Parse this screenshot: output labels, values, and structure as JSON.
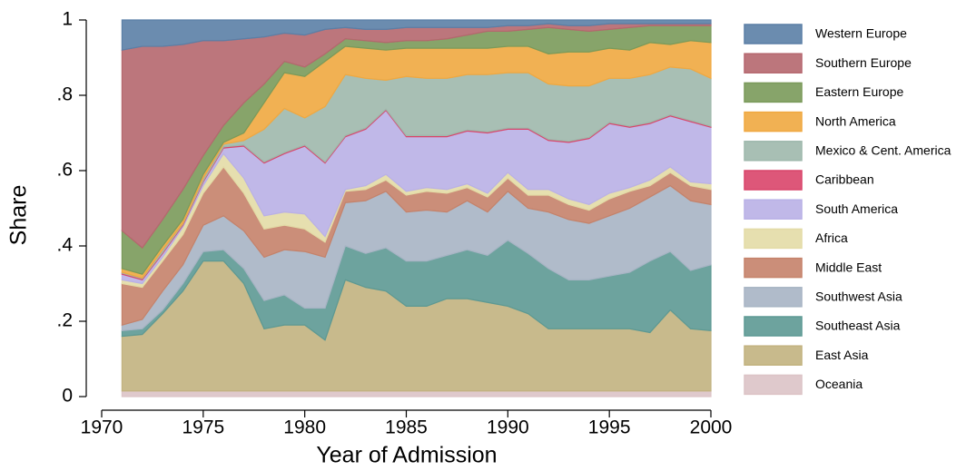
{
  "chart_data": {
    "type": "stacked_area",
    "xlabel": "Year of Admission",
    "ylabel": "Share",
    "x": [
      1971,
      1972,
      1973,
      1974,
      1975,
      1976,
      1977,
      1978,
      1979,
      1980,
      1981,
      1982,
      1983,
      1984,
      1985,
      1986,
      1987,
      1988,
      1989,
      1990,
      1991,
      1992,
      1993,
      1994,
      1995,
      1996,
      1997,
      1998,
      1999,
      2000
    ],
    "xlim": [
      1970,
      2000
    ],
    "xticks": [
      1970,
      1975,
      1980,
      1985,
      1990,
      1995,
      2000
    ],
    "ylim": [
      0,
      1
    ],
    "yticks": [
      0,
      {
        "value": 0.2,
        "label": ".2"
      },
      {
        "value": 0.4,
        "label": ".4"
      },
      {
        "value": 0.6,
        "label": ".6"
      },
      {
        "value": 0.8,
        "label": ".8"
      },
      1
    ],
    "series": [
      {
        "name": "Oceania",
        "color": "#dcc3c6",
        "values": [
          0.015,
          0.015,
          0.015,
          0.015,
          0.015,
          0.015,
          0.015,
          0.015,
          0.015,
          0.015,
          0.015,
          0.015,
          0.015,
          0.015,
          0.015,
          0.015,
          0.015,
          0.015,
          0.015,
          0.015,
          0.015,
          0.015,
          0.015,
          0.015,
          0.015,
          0.015,
          0.015,
          0.015,
          0.015,
          0.015
        ]
      },
      {
        "name": "East Asia",
        "color": "#c2b27f",
        "values": [
          0.145,
          0.15,
          0.205,
          0.265,
          0.345,
          0.345,
          0.285,
          0.165,
          0.175,
          0.175,
          0.135,
          0.295,
          0.275,
          0.265,
          0.225,
          0.225,
          0.245,
          0.245,
          0.235,
          0.225,
          0.205,
          0.165,
          0.165,
          0.165,
          0.165,
          0.165,
          0.155,
          0.215,
          0.165,
          0.16
        ]
      },
      {
        "name": "Southeast Asia",
        "color": "#5d9993",
        "values": [
          0.015,
          0.015,
          0.01,
          0.02,
          0.025,
          0.03,
          0.04,
          0.075,
          0.08,
          0.045,
          0.085,
          0.09,
          0.09,
          0.115,
          0.12,
          0.12,
          0.115,
          0.13,
          0.125,
          0.175,
          0.16,
          0.16,
          0.13,
          0.13,
          0.14,
          0.15,
          0.19,
          0.155,
          0.155,
          0.175
        ]
      },
      {
        "name": "Southwest Asia",
        "color": "#a7b4c4",
        "values": [
          0.015,
          0.025,
          0.05,
          0.05,
          0.07,
          0.09,
          0.1,
          0.115,
          0.12,
          0.15,
          0.135,
          0.115,
          0.14,
          0.15,
          0.13,
          0.135,
          0.115,
          0.13,
          0.115,
          0.13,
          0.12,
          0.15,
          0.16,
          0.15,
          0.16,
          0.17,
          0.17,
          0.175,
          0.185,
          0.16
        ]
      },
      {
        "name": "Middle East",
        "color": "#c5826a",
        "values": [
          0.11,
          0.085,
          0.08,
          0.08,
          0.085,
          0.13,
          0.1,
          0.075,
          0.065,
          0.06,
          0.04,
          0.03,
          0.03,
          0.03,
          0.045,
          0.05,
          0.05,
          0.035,
          0.04,
          0.035,
          0.035,
          0.045,
          0.04,
          0.035,
          0.045,
          0.045,
          0.03,
          0.035,
          0.04,
          0.04
        ]
      },
      {
        "name": "Africa",
        "color": "#e3dba6",
        "values": [
          0.01,
          0.01,
          0.01,
          0.02,
          0.02,
          0.035,
          0.04,
          0.035,
          0.035,
          0.04,
          0.015,
          0.005,
          0.01,
          0.015,
          0.01,
          0.01,
          0.01,
          0.01,
          0.01,
          0.015,
          0.015,
          0.015,
          0.015,
          0.015,
          0.015,
          0.01,
          0.015,
          0.015,
          0.01,
          0.015
        ]
      },
      {
        "name": "South America",
        "color": "#b9b0e6",
        "values": [
          0.015,
          0.01,
          0.01,
          0.005,
          0.01,
          0.015,
          0.085,
          0.14,
          0.155,
          0.18,
          0.195,
          0.14,
          0.15,
          0.17,
          0.145,
          0.135,
          0.14,
          0.14,
          0.16,
          0.115,
          0.16,
          0.13,
          0.15,
          0.175,
          0.185,
          0.16,
          0.15,
          0.135,
          0.16,
          0.15
        ]
      },
      {
        "name": "Caribbean",
        "color": "#d9456a",
        "values": [
          0.003,
          0.003,
          0.003,
          0.003,
          0.003,
          0.003,
          0.003,
          0.003,
          0.003,
          0.003,
          0.003,
          0.003,
          0.003,
          0.003,
          0.003,
          0.003,
          0.003,
          0.003,
          0.003,
          0.003,
          0.003,
          0.003,
          0.003,
          0.003,
          0.003,
          0.003,
          0.003,
          0.003,
          0.003,
          0.003
        ]
      },
      {
        "name": "Mexico & Cent. America",
        "color": "#9eb8ac",
        "values": [
          0.002,
          0.002,
          0.007,
          0.002,
          0.007,
          0.007,
          0.012,
          0.087,
          0.117,
          0.072,
          0.147,
          0.162,
          0.132,
          0.077,
          0.157,
          0.152,
          0.152,
          0.147,
          0.152,
          0.147,
          0.147,
          0.147,
          0.147,
          0.137,
          0.117,
          0.127,
          0.127,
          0.127,
          0.137,
          0.127
        ]
      },
      {
        "name": "North America",
        "color": "#f0a840",
        "values": [
          0.01,
          0.01,
          0.01,
          0.01,
          0.01,
          0.005,
          0.02,
          0.07,
          0.095,
          0.11,
          0.12,
          0.075,
          0.08,
          0.08,
          0.075,
          0.08,
          0.08,
          0.07,
          0.07,
          0.07,
          0.07,
          0.08,
          0.09,
          0.09,
          0.08,
          0.075,
          0.085,
          0.06,
          0.075,
          0.095
        ]
      },
      {
        "name": "Eastern Europe",
        "color": "#7a9a5a",
        "values": [
          0.1,
          0.07,
          0.07,
          0.08,
          0.05,
          0.045,
          0.08,
          0.05,
          0.03,
          0.025,
          0.02,
          0.02,
          0.02,
          0.02,
          0.02,
          0.02,
          0.025,
          0.035,
          0.045,
          0.04,
          0.045,
          0.07,
          0.06,
          0.055,
          0.05,
          0.06,
          0.045,
          0.05,
          0.04,
          0.045
        ]
      },
      {
        "name": "Southern Europe",
        "color": "#b5676e",
        "values": [
          0.48,
          0.535,
          0.46,
          0.385,
          0.305,
          0.225,
          0.17,
          0.125,
          0.075,
          0.085,
          0.065,
          0.03,
          0.03,
          0.035,
          0.035,
          0.035,
          0.03,
          0.02,
          0.01,
          0.015,
          0.01,
          0.01,
          0.01,
          0.015,
          0.015,
          0.01,
          0.005,
          0.005,
          0.005,
          0.005
        ]
      },
      {
        "name": "Western Europe",
        "color": "#5b7fa6",
        "values": [
          0.08,
          0.07,
          0.07,
          0.065,
          0.055,
          0.055,
          0.05,
          0.045,
          0.035,
          0.04,
          0.025,
          0.02,
          0.025,
          0.025,
          0.02,
          0.02,
          0.02,
          0.02,
          0.02,
          0.015,
          0.015,
          0.01,
          0.015,
          0.015,
          0.01,
          0.01,
          0.01,
          0.01,
          0.01,
          0.01
        ]
      }
    ]
  }
}
